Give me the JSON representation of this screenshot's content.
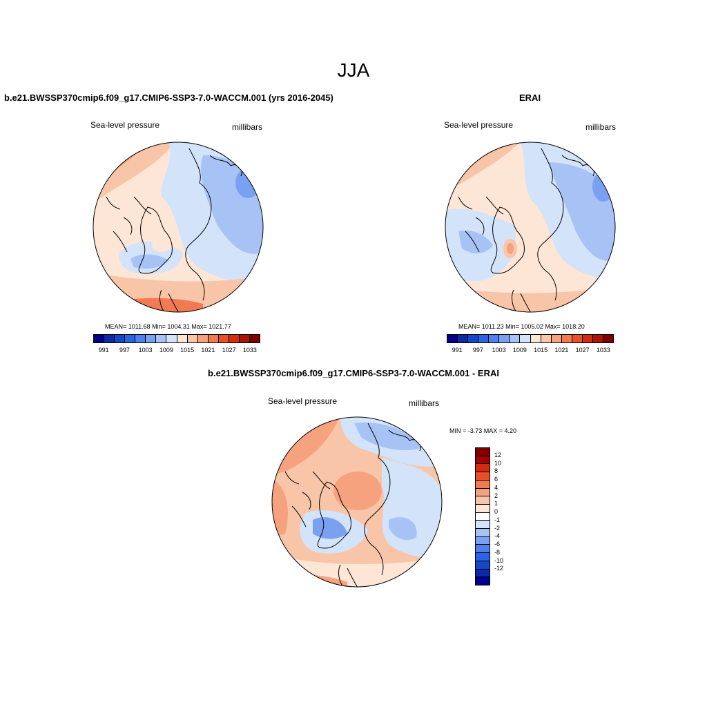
{
  "title": "JJA",
  "panels": {
    "model": {
      "title": "b.e21.BWSSP370cmip6.f09_g17.CMIP6-SSP3-7.0-WACCM.001 (yrs 2016-2045)",
      "variable": "Sea-level pressure",
      "units": "millibars",
      "stats": "MEAN= 1011.68  Min= 1004.31  Max= 1021.77"
    },
    "obs": {
      "title": "ERAI",
      "variable": "Sea-level pressure",
      "units": "millibars",
      "stats": "MEAN= 1011.23  Min= 1005.02  Max= 1018.20"
    },
    "diff": {
      "title": "b.e21.BWSSP370cmip6.f09_g17.CMIP6-SSP3-7.0-WACCM.001 - ERAI",
      "variable": "Sea-level pressure",
      "units": "millibars",
      "stats": "MIN =  -3.73 MAX =   4.20"
    }
  },
  "colorbar_abs": {
    "colors": [
      "#00008c",
      "#0a2aa8",
      "#1447c9",
      "#2a63e6",
      "#5080f0",
      "#7aa0f2",
      "#a7c3f5",
      "#d3e3fa",
      "#fde6d6",
      "#f9c5a8",
      "#f6a27f",
      "#f27a52",
      "#ea4f2a",
      "#d42a10",
      "#aa1505",
      "#7f0000"
    ],
    "labels": [
      "991",
      "997",
      "1003",
      "1009",
      "1015",
      "1021",
      "1027",
      "1033"
    ]
  },
  "colorbar_diff": {
    "colors": [
      "#7f0000",
      "#a50000",
      "#d42a10",
      "#ea4f2a",
      "#f27a52",
      "#f6a27f",
      "#f9c5a8",
      "#fde6d6",
      "#ffffff",
      "#d3e3fa",
      "#a7c3f5",
      "#7aa0f2",
      "#5080f0",
      "#2a63e6",
      "#1447c9",
      "#0a2aa8",
      "#00008c"
    ],
    "labels": [
      "12",
      "10",
      "8",
      "6",
      "4",
      "2",
      "1",
      "0",
      "-1",
      "-2",
      "-4",
      "-6",
      "-8",
      "-10",
      "-12"
    ]
  }
}
